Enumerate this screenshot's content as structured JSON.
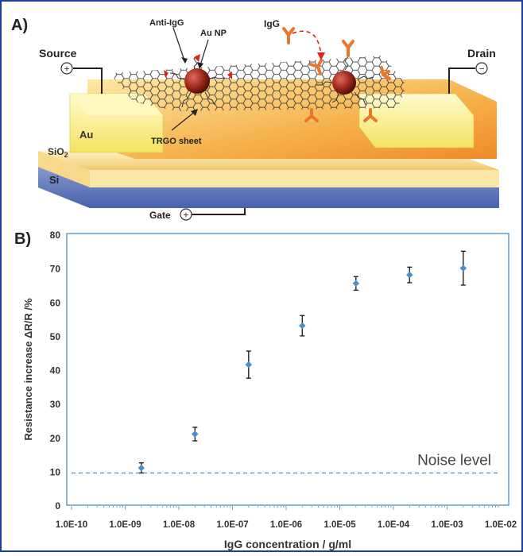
{
  "panel_a": {
    "label": "A)",
    "labels": {
      "source": "Source",
      "drain": "Drain",
      "gate": "Gate",
      "anti_igg": "Anti-IgG",
      "au_np": "Au NP",
      "igg": "IgG",
      "au": "Au",
      "sio2": "SiO",
      "sio2_sub": "2",
      "si": "Si",
      "trgo": "TRGO sheet",
      "plus": "+",
      "minus": "−"
    }
  },
  "panel_b": {
    "label": "B)"
  },
  "chart_data": {
    "type": "scatter",
    "x_scale": "log",
    "xlabel": "IgG concentration / g/ml",
    "ylabel": "Resistance increase ΔR/R /%",
    "xlim": [
      1e-10,
      0.01
    ],
    "ylim": [
      0,
      80
    ],
    "x_ticks": [
      "1.0E-10",
      "1.0E-09",
      "1.0E-08",
      "1.0E-07",
      "1.0E-06",
      "1.0E-05",
      "1.0E-04",
      "1.0E-03",
      "1.0E-02"
    ],
    "y_ticks": [
      0,
      10,
      20,
      30,
      40,
      50,
      60,
      70,
      80
    ],
    "points": [
      {
        "x": 2e-09,
        "y": 11,
        "err": 1.5
      },
      {
        "x": 2e-08,
        "y": 21,
        "err": 2
      },
      {
        "x": 2e-07,
        "y": 41.5,
        "err": 4
      },
      {
        "x": 2e-06,
        "y": 53,
        "err": 3
      },
      {
        "x": 2e-05,
        "y": 65.5,
        "err": 2
      },
      {
        "x": 0.0002,
        "y": 68,
        "err": 2.3
      },
      {
        "x": 0.002,
        "y": 70,
        "err": 5
      }
    ],
    "noise_level": {
      "label": "Noise level",
      "y": 9.5
    },
    "colors": {
      "marker": "#4a90c8",
      "errorbar": "#222222",
      "axis_frame": "#4a90c8",
      "noise_line": "#4a90c8"
    }
  }
}
